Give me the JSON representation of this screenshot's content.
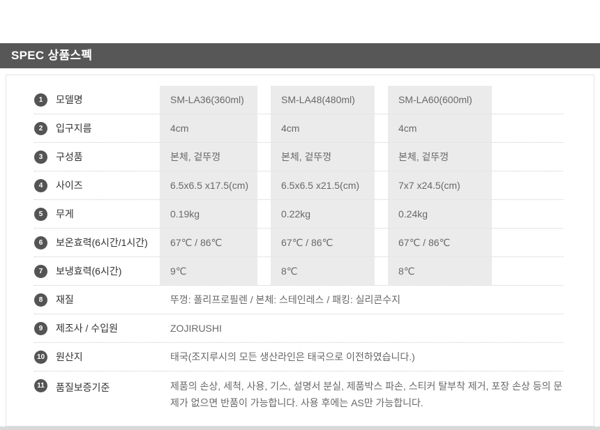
{
  "header": {
    "title": "SPEC 상품스펙"
  },
  "colors": {
    "header_bar": "#575757",
    "badge": "#545454",
    "cell_background": "#ebebeb",
    "bottom_bar": "#d9d9d9",
    "dotted_divider": "#cbcbcb"
  },
  "table": {
    "rows": [
      {
        "num": "1",
        "label": "모델명",
        "values": [
          "SM-LA36(360ml)",
          "SM-LA48(480ml)",
          "SM-LA60(600ml)"
        ]
      },
      {
        "num": "2",
        "label": "입구지름",
        "values": [
          "4cm",
          "4cm",
          "4cm"
        ]
      },
      {
        "num": "3",
        "label": "구성품",
        "values": [
          "본체, 겉뚜껑",
          "본체, 겉뚜껑",
          "본체, 겉뚜껑"
        ]
      },
      {
        "num": "4",
        "label": "사이즈",
        "values": [
          "6.5x6.5 x17.5(cm)",
          "6.5x6.5 x21.5(cm)",
          "7x7 x24.5(cm)"
        ]
      },
      {
        "num": "5",
        "label": "무게",
        "values": [
          "0.19kg",
          "0.22kg",
          "0.24kg"
        ]
      },
      {
        "num": "6",
        "label": "보온효력(6시간/1시간)",
        "values": [
          "67℃ / 86℃",
          "67℃ / 86℃",
          "67℃ / 86℃"
        ]
      },
      {
        "num": "7",
        "label": "보냉효력(6시간)",
        "values": [
          "9℃",
          "8℃",
          "8℃"
        ]
      },
      {
        "num": "8",
        "label": "재질",
        "value": "뚜껑: 폴리프로필렌 / 본체: 스테인레스 / 패킹: 실리콘수지"
      },
      {
        "num": "9",
        "label": "제조사 / 수입원",
        "value": "ZOJIRUSHI"
      },
      {
        "num": "10",
        "label": "원산지",
        "value": "태국(조지루시의 모든 생산라인은 태국으로 이전하였습니다.)"
      },
      {
        "num": "11",
        "label": "품질보증기준",
        "value": "제품의 손상, 세척, 사용, 기스, 설명서 분실, 제품박스 파손, 스티커 탈부착 제거, 포장 손상 등의 문제가 없으면 반품이 가능합니다. 사용 후에는 AS만 가능합니다."
      }
    ]
  }
}
